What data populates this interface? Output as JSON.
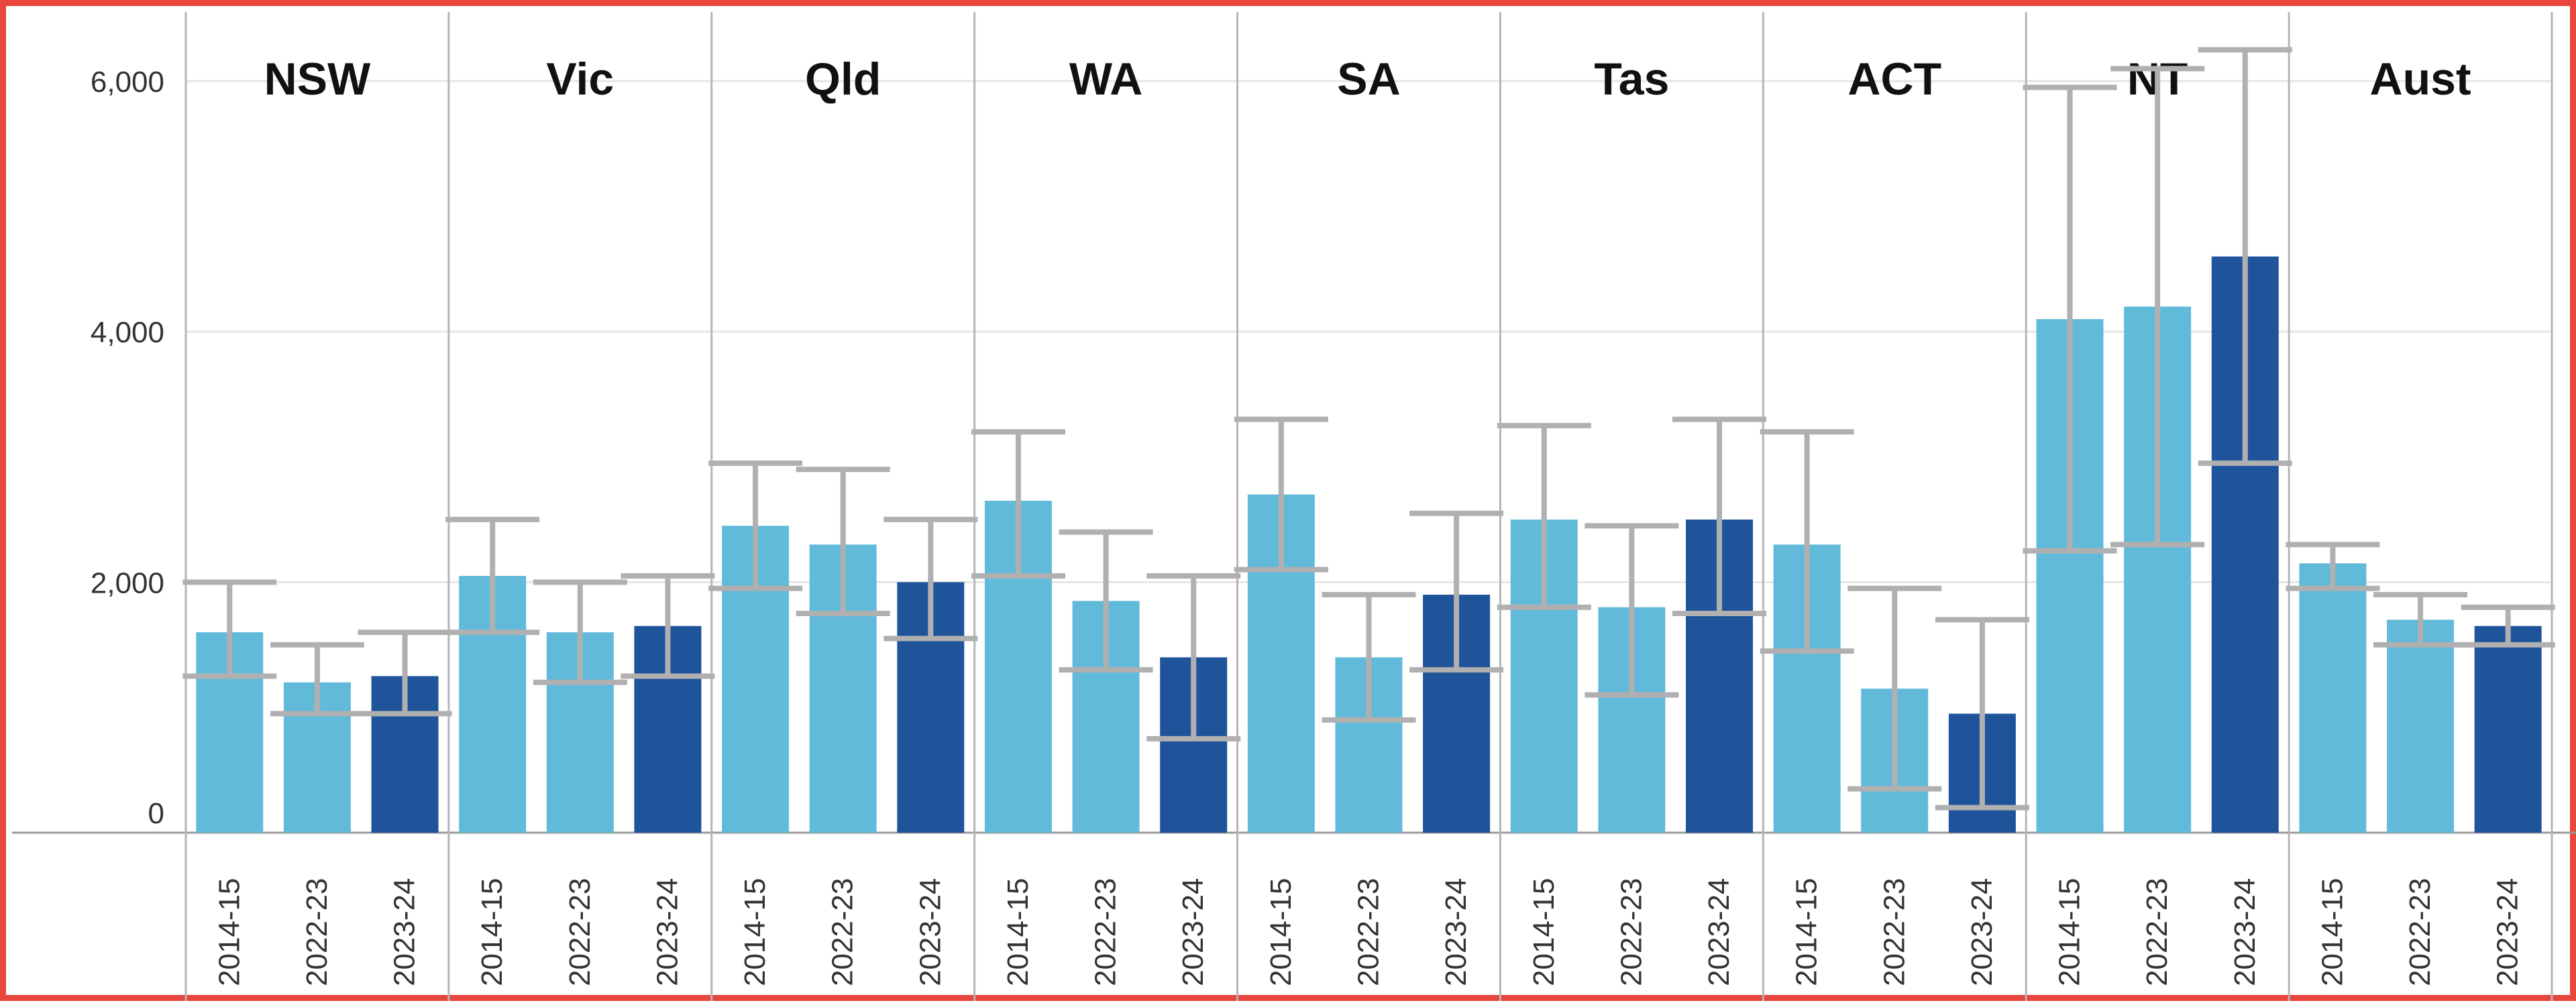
{
  "chart_data": {
    "type": "bar",
    "title": "",
    "xlabel": "",
    "ylabel": "",
    "ylim": [
      0,
      6000
    ],
    "y_ticks": [
      {
        "value": 0,
        "label": "0"
      },
      {
        "value": 2000,
        "label": "2,000"
      },
      {
        "value": 4000,
        "label": "4,000"
      },
      {
        "value": 6000,
        "label": "6,000"
      }
    ],
    "grid": true,
    "error_bars": true,
    "categories": [
      "2014-15",
      "2022-23",
      "2023-24"
    ],
    "colors": {
      "2014-15": "#62bada",
      "2022-23": "#62bada",
      "2023-24": "#1f539a",
      "error_bar": "#b0b0b0",
      "grid": "#e6e6e6",
      "divider": "#b5b5b5",
      "frame": "#e8453c"
    },
    "panels": [
      {
        "name": "NSW",
        "bars": [
          {
            "period": "2014-15",
            "value": 1600,
            "low": 1250,
            "high": 2000
          },
          {
            "period": "2022-23",
            "value": 1200,
            "low": 950,
            "high": 1500
          },
          {
            "period": "2023-24",
            "value": 1250,
            "low": 950,
            "high": 1600
          }
        ]
      },
      {
        "name": "Vic",
        "bars": [
          {
            "period": "2014-15",
            "value": 2050,
            "low": 1600,
            "high": 2500
          },
          {
            "period": "2022-23",
            "value": 1600,
            "low": 1200,
            "high": 2000
          },
          {
            "period": "2023-24",
            "value": 1650,
            "low": 1250,
            "high": 2050
          }
        ]
      },
      {
        "name": "Qld",
        "bars": [
          {
            "period": "2014-15",
            "value": 2450,
            "low": 1950,
            "high": 2950
          },
          {
            "period": "2022-23",
            "value": 2300,
            "low": 1750,
            "high": 2900
          },
          {
            "period": "2023-24",
            "value": 2000,
            "low": 1550,
            "high": 2500
          }
        ]
      },
      {
        "name": "WA",
        "bars": [
          {
            "period": "2014-15",
            "value": 2650,
            "low": 2050,
            "high": 3200
          },
          {
            "period": "2022-23",
            "value": 1850,
            "low": 1300,
            "high": 2400
          },
          {
            "period": "2023-24",
            "value": 1400,
            "low": 750,
            "high": 2050
          }
        ]
      },
      {
        "name": "SA",
        "bars": [
          {
            "period": "2014-15",
            "value": 2700,
            "low": 2100,
            "high": 3300
          },
          {
            "period": "2022-23",
            "value": 1400,
            "low": 900,
            "high": 1900
          },
          {
            "period": "2023-24",
            "value": 1900,
            "low": 1300,
            "high": 2550
          }
        ]
      },
      {
        "name": "Tas",
        "bars": [
          {
            "period": "2014-15",
            "value": 2500,
            "low": 1800,
            "high": 3250
          },
          {
            "period": "2022-23",
            "value": 1800,
            "low": 1100,
            "high": 2450
          },
          {
            "period": "2023-24",
            "value": 2500,
            "low": 1750,
            "high": 3300
          }
        ]
      },
      {
        "name": "ACT",
        "bars": [
          {
            "period": "2014-15",
            "value": 2300,
            "low": 1450,
            "high": 3200
          },
          {
            "period": "2022-23",
            "value": 1150,
            "low": 350,
            "high": 1950
          },
          {
            "period": "2023-24",
            "value": 950,
            "low": 200,
            "high": 1700
          }
        ]
      },
      {
        "name": "NT",
        "bars": [
          {
            "period": "2014-15",
            "value": 4100,
            "low": 2250,
            "high": 5950
          },
          {
            "period": "2022-23",
            "value": 4200,
            "low": 2300,
            "high": 6100
          },
          {
            "period": "2023-24",
            "value": 4600,
            "low": 2950,
            "high": 6250
          }
        ]
      },
      {
        "name": "Aust",
        "bars": [
          {
            "period": "2014-15",
            "value": 2150,
            "low": 1950,
            "high": 2300
          },
          {
            "period": "2022-23",
            "value": 1700,
            "low": 1500,
            "high": 1900
          },
          {
            "period": "2023-24",
            "value": 1650,
            "low": 1500,
            "high": 1800
          }
        ]
      }
    ]
  }
}
